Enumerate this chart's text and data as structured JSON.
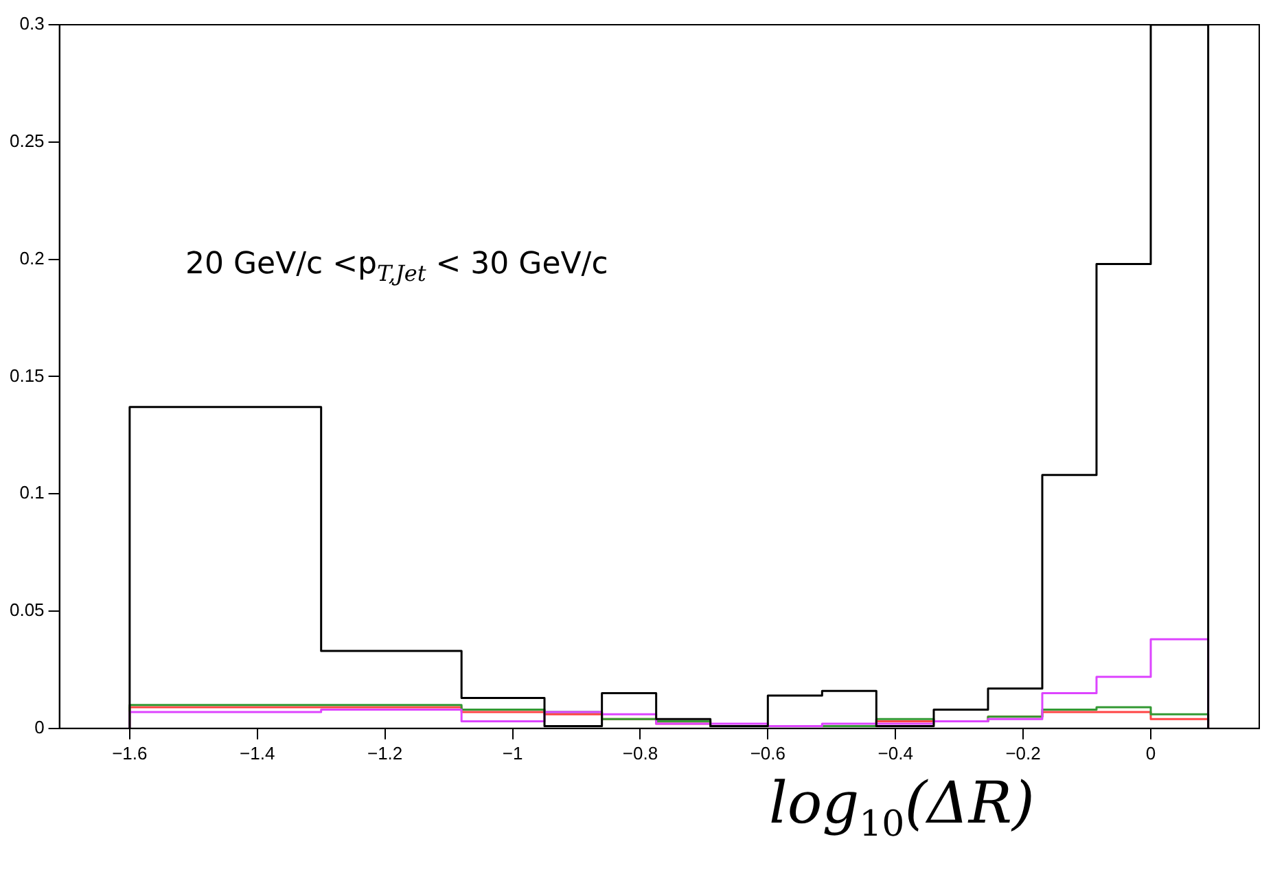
{
  "chart_data": {
    "type": "histogram",
    "xlabel": "log$_{10}$(ΔR)",
    "annotations": [
      "20 GeV/c <p$_{T,Jet}$ < 30 GeV/c"
    ],
    "bins": [
      -1.6,
      -1.3,
      -1.08,
      -0.95,
      -0.86,
      -0.775,
      -0.69,
      -0.6,
      -0.515,
      -0.43,
      -0.34,
      -0.255,
      -0.17,
      -0.085,
      0,
      0.09
    ],
    "series": [
      {
        "color": "#000000",
        "values": [
          0.137,
          0.033,
          0.013,
          0.001,
          0.015,
          0.004,
          0.001,
          0.014,
          0.016,
          0.001,
          0.008,
          0.017,
          0.108,
          0.198,
          0.3
        ]
      },
      {
        "color": "#dd44ff",
        "values": [
          0.007,
          0.008,
          0.003,
          0.007,
          0.006,
          0.002,
          0.002,
          0.001,
          0.002,
          0.002,
          0.003,
          0.004,
          0.015,
          0.022,
          0.038
        ]
      },
      {
        "color": "#339933",
        "values": [
          0.01,
          0.01,
          0.008,
          0.007,
          0.004,
          0.003,
          0.001,
          0.001,
          0.001,
          0.004,
          0.003,
          0.005,
          0.008,
          0.009,
          0.006
        ]
      },
      {
        "color": "#ff4444",
        "values": [
          0.009,
          0.009,
          0.007,
          0.006,
          0.004,
          0.002,
          0.001,
          0.001,
          0.001,
          0.003,
          0.003,
          0.005,
          0.007,
          0.007,
          0.004
        ]
      }
    ],
    "xlim": [
      -1.71,
      0.17
    ],
    "ylim": [
      0,
      0.3
    ],
    "xticks": [
      {
        "value": -1.6,
        "label": "−1.6"
      },
      {
        "value": -1.4,
        "label": "−1.4"
      },
      {
        "value": -1.2,
        "label": "−1.2"
      },
      {
        "value": -1,
        "label": "−1"
      },
      {
        "value": -0.8,
        "label": "−0.8"
      },
      {
        "value": -0.6,
        "label": "−0.6"
      },
      {
        "value": -0.4,
        "label": "−0.4"
      },
      {
        "value": -0.2,
        "label": "−0.2"
      },
      0
    ],
    "yticks": [
      0,
      0.05,
      0.1,
      0.15,
      0.2,
      0.25,
      0.3
    ],
    "grid": false,
    "legend": false
  }
}
